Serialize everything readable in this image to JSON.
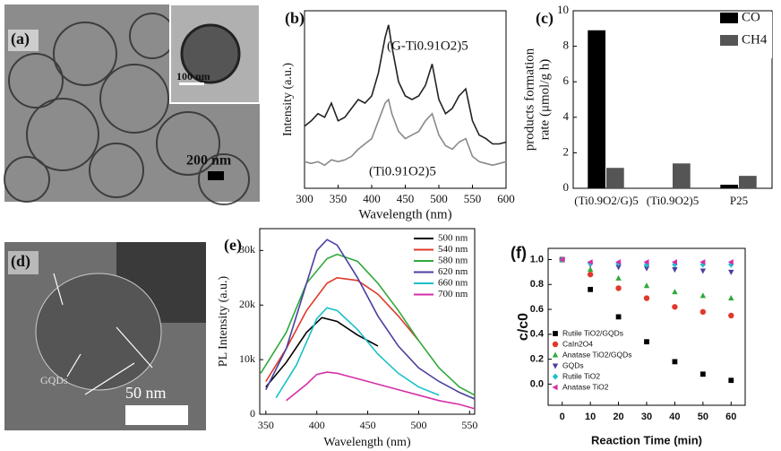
{
  "images": [
    {
      "label": "(a)",
      "scale_bar": "200 nm",
      "inset_scale_bar": "100 nm"
    },
    {
      "label": "(d)",
      "annotation": "GQDs",
      "scale_bar": "50 nm"
    }
  ],
  "chart_data": [
    {
      "label": "(b)",
      "type": "line",
      "x": [
        300,
        310,
        320,
        330,
        340,
        350,
        360,
        370,
        380,
        390,
        400,
        410,
        420,
        425,
        430,
        440,
        450,
        460,
        470,
        480,
        490,
        500,
        510,
        520,
        530,
        540,
        550,
        560,
        570,
        580,
        590,
        600
      ],
      "series": [
        {
          "name": "(G-Ti0.91O2)5",
          "color": "#222222",
          "values": [
            35,
            38,
            42,
            40,
            48,
            38,
            40,
            45,
            50,
            48,
            52,
            65,
            85,
            92,
            80,
            60,
            52,
            50,
            52,
            58,
            70,
            50,
            42,
            45,
            52,
            56,
            38,
            30,
            28,
            25,
            25,
            26
          ]
        },
        {
          "name": "(Ti0.91O2)5",
          "color": "#8a8a8a",
          "values": [
            15,
            14,
            15,
            13,
            16,
            15,
            16,
            18,
            22,
            25,
            28,
            38,
            48,
            50,
            42,
            32,
            28,
            30,
            32,
            38,
            42,
            30,
            24,
            22,
            26,
            28,
            18,
            15,
            14,
            13,
            14,
            15
          ]
        }
      ],
      "xlim": [
        300,
        600
      ],
      "xticks": [
        300,
        350,
        400,
        450,
        500,
        550,
        600
      ],
      "ylim": [
        0,
        100
      ],
      "x_label": "Wavelength (nm)",
      "y_label": "Intensity (a.u.)"
    },
    {
      "label": "(c)",
      "type": "bar",
      "categories": [
        "(Ti0.9O2/G)5",
        "(Ti0.9O2)5",
        "P25"
      ],
      "series": [
        {
          "name": "CO",
          "color": "#000000",
          "values": [
            8.9,
            0,
            0.2
          ]
        },
        {
          "name": "CH4",
          "color": "#555555",
          "values": [
            1.15,
            1.4,
            0.7
          ]
        }
      ],
      "ylim": [
        0,
        10
      ],
      "yticks": [
        0,
        2,
        4,
        6,
        8,
        10
      ],
      "y_label": [
        "products formation",
        "rate (μmol/g h)"
      ],
      "legend": "top-right"
    },
    {
      "label": "(e)",
      "type": "line",
      "series": [
        {
          "name": "500 nm",
          "color": "#000000",
          "x": [
            350,
            370,
            390,
            405,
            420,
            440,
            460
          ],
          "values": [
            5000,
            9500,
            15000,
            17700,
            17000,
            14500,
            12500
          ]
        },
        {
          "name": "540 nm",
          "color": "#e0392b",
          "x": [
            350,
            370,
            390,
            410,
            420,
            440,
            460,
            480,
            500
          ],
          "values": [
            6000,
            12000,
            19000,
            24000,
            25000,
            24500,
            22000,
            18000,
            13500
          ]
        },
        {
          "name": "580 nm",
          "color": "#2faa3a",
          "x": [
            345,
            370,
            390,
            410,
            420,
            440,
            460,
            480,
            500,
            520,
            540,
            555
          ],
          "values": [
            7500,
            15000,
            24000,
            28500,
            29300,
            28000,
            24000,
            19000,
            13500,
            8500,
            5000,
            3500
          ]
        },
        {
          "name": "620 nm",
          "color": "#4a3fa0",
          "x": [
            350,
            370,
            390,
            400,
            410,
            420,
            440,
            460,
            480,
            500,
            520,
            540,
            555
          ],
          "values": [
            4500,
            12000,
            24000,
            30000,
            32000,
            31000,
            25000,
            18000,
            12500,
            8500,
            6000,
            4000,
            2800
          ]
        },
        {
          "name": "660 nm",
          "color": "#1cc0c8",
          "x": [
            360,
            380,
            400,
            410,
            420,
            440,
            460,
            480,
            500,
            520
          ],
          "values": [
            3000,
            9000,
            17500,
            19500,
            19000,
            15500,
            11000,
            7500,
            5000,
            3500
          ]
        },
        {
          "name": "700 nm",
          "color": "#d62fa8",
          "x": [
            370,
            390,
            400,
            410,
            420,
            440,
            460,
            480,
            500,
            520,
            540,
            555
          ],
          "values": [
            2500,
            5500,
            7300,
            7700,
            7500,
            6500,
            5500,
            4500,
            3500,
            2500,
            1800,
            1000
          ]
        }
      ],
      "xlim": [
        344,
        555
      ],
      "xticks": [
        350,
        400,
        450,
        500,
        550
      ],
      "ylim": [
        0,
        34000
      ],
      "yticks": [
        0,
        {
          "value": 10000,
          "label": "10k"
        },
        {
          "value": 20000,
          "label": "20k"
        },
        {
          "value": 30000,
          "label": "30k"
        }
      ],
      "x_label": "Wavelength (nm)",
      "y_label": "PL Intensity (a.u.)",
      "legend": "top-right"
    },
    {
      "label": "(f)",
      "type": "scatter",
      "x": [
        0,
        10,
        20,
        30,
        40,
        50,
        60
      ],
      "series": [
        {
          "name": "Rutile TiO2/GQDs",
          "color": "#000000",
          "marker": "square",
          "values": [
            1.0,
            0.76,
            0.54,
            0.34,
            0.18,
            0.08,
            0.03
          ]
        },
        {
          "name": "CaIn2O4",
          "color": "#e0392b",
          "marker": "circle",
          "values": [
            1.0,
            0.88,
            0.77,
            0.69,
            0.62,
            0.58,
            0.55
          ]
        },
        {
          "name": "Anatase TiO2/GQDs",
          "color": "#2faa3a",
          "marker": "triangle-up",
          "values": [
            1.0,
            0.92,
            0.85,
            0.79,
            0.74,
            0.71,
            0.69
          ]
        },
        {
          "name": "GQDs",
          "color": "#4a3fa0",
          "marker": "triangle-down",
          "values": [
            1.0,
            0.96,
            0.94,
            0.93,
            0.92,
            0.91,
            0.9
          ]
        },
        {
          "name": "Rutile TiO2",
          "color": "#1cc0c8",
          "marker": "diamond",
          "values": [
            1.0,
            0.97,
            0.97,
            0.96,
            0.96,
            0.96,
            0.96
          ]
        },
        {
          "name": "Anatase TiO2",
          "color": "#d62fa8",
          "marker": "triangle-left",
          "values": [
            1.0,
            0.98,
            0.98,
            0.98,
            0.98,
            0.98,
            0.98
          ]
        }
      ],
      "xlim": [
        -5,
        65
      ],
      "xticks": [
        0,
        10,
        20,
        30,
        40,
        50,
        60
      ],
      "ylim": [
        -0.17,
        1.09
      ],
      "yticks": [
        {
          "value": 0,
          "label": "0.0"
        },
        0.2,
        0.4,
        0.6,
        0.8,
        {
          "value": 1,
          "label": "1.0"
        }
      ],
      "x_label": "Reaction Time (min)",
      "y_label": "c/c0",
      "legend": "center-left"
    }
  ]
}
